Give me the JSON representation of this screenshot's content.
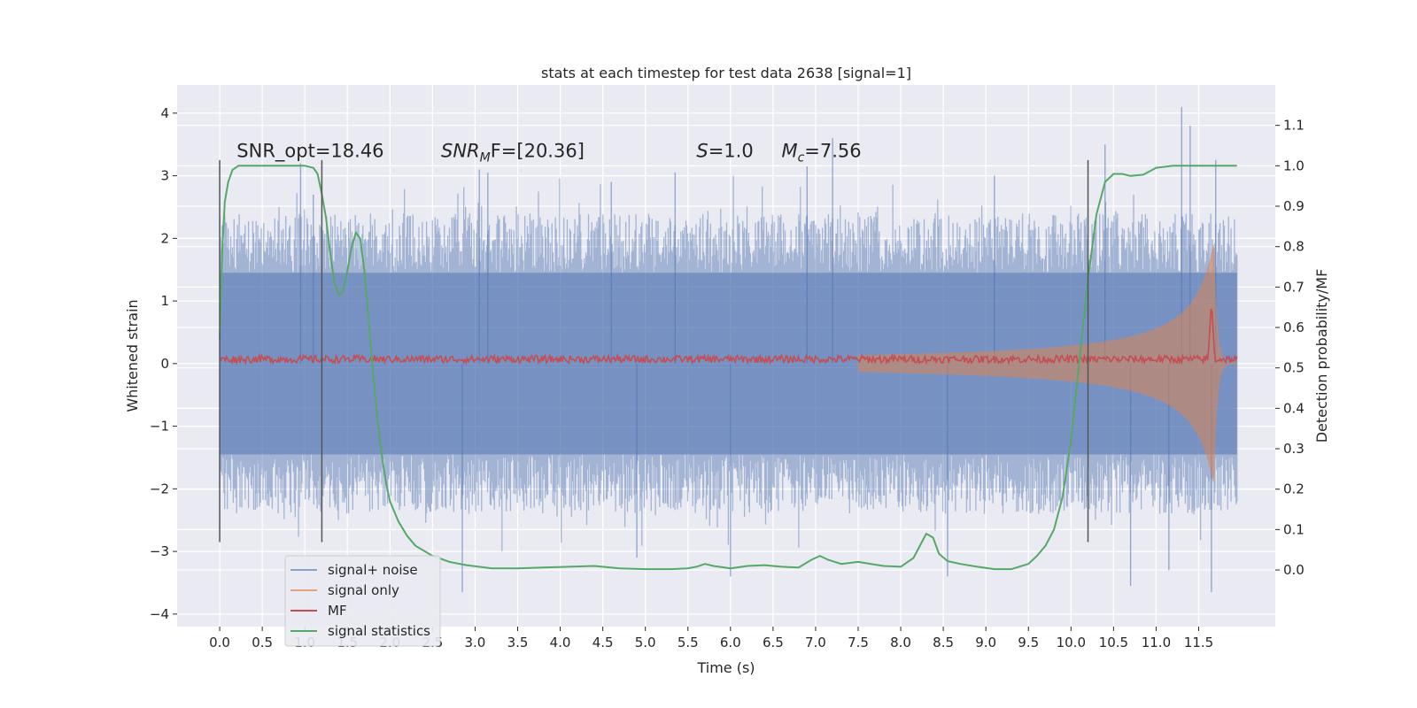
{
  "chart_data": {
    "type": "line",
    "title": "stats at each timestep for test data 2638 [signal=1]",
    "xlabel": "Time (s)",
    "ylabel": "Whitened strain",
    "ylabel_right": "Detection probability/MF",
    "xlim": [
      -0.5,
      12.4
    ],
    "ylim": [
      -4.2,
      4.45
    ],
    "ylim_right": [
      -0.14,
      1.2
    ],
    "xticks": [
      0.0,
      0.5,
      1.0,
      1.5,
      2.0,
      2.5,
      3.0,
      3.5,
      4.0,
      4.5,
      5.0,
      5.5,
      6.0,
      6.5,
      7.0,
      7.5,
      8.0,
      8.5,
      9.0,
      9.5,
      10.0,
      10.5,
      11.0,
      11.5
    ],
    "xtick_labels": [
      "0.0",
      "0.5",
      "1.0",
      "1.5",
      "2.0",
      "2.5",
      "3.0",
      "3.5",
      "4.0",
      "4.5",
      "5.0",
      "5.5",
      "6.0",
      "6.5",
      "7.0",
      "7.5",
      "8.0",
      "8.5",
      "9.0",
      "9.5",
      "10.0",
      "10.5",
      "11.0",
      "11.5"
    ],
    "yticks": [
      -4,
      -3,
      -2,
      -1,
      0,
      1,
      2,
      3,
      4
    ],
    "ytick_labels": [
      "−4",
      "−3",
      "−2",
      "−1",
      "0",
      "1",
      "2",
      "3",
      "4"
    ],
    "yticks_right": [
      0.0,
      0.1,
      0.2,
      0.3,
      0.4,
      0.5,
      0.6,
      0.7,
      0.8,
      0.9,
      1.0,
      1.1
    ],
    "ytick_labels_right": [
      "0.0",
      "0.1",
      "0.2",
      "0.3",
      "0.4",
      "0.5",
      "0.6",
      "0.7",
      "0.8",
      "0.9",
      "1.0",
      "1.1"
    ],
    "grid": true,
    "legend_position": "lower-left",
    "annotations": [
      {
        "text": "SNR_opt=18.46",
        "x": 0.2,
        "y": 3.3
      },
      {
        "base": "SNR",
        "sub": "M",
        "rest": "F=[20.36]",
        "x": 2.6,
        "y": 3.3
      },
      {
        "base": "S",
        "sub": "",
        "rest": "=1.0",
        "x": 5.6,
        "y": 3.3
      },
      {
        "base": "M",
        "sub": "c",
        "rest": "=7.56",
        "x": 6.6,
        "y": 3.3
      }
    ],
    "vertical_lines": [
      {
        "x": 0.0,
        "ymin": -2.85,
        "ymax": 3.25
      },
      {
        "x": 1.2,
        "ymin": -2.85,
        "ymax": 3.25
      },
      {
        "x": 10.2,
        "ymin": -2.85,
        "ymax": 3.25
      }
    ],
    "series": [
      {
        "name": "signal+ noise",
        "color": "#4c72b0",
        "axis": "left",
        "kind": "noise-band",
        "x_range": [
          0.0,
          11.95
        ],
        "core_amplitude": 1.45,
        "peak_amplitude": 2.4,
        "spikes": [
          {
            "x": 0.95,
            "y": 3.2
          },
          {
            "x": 1.1,
            "y": 2.7
          },
          {
            "x": 2.85,
            "y": -3.65
          },
          {
            "x": 3.05,
            "y": 3.1
          },
          {
            "x": 3.15,
            "y": 3.05
          },
          {
            "x": 4.6,
            "y": 2.9
          },
          {
            "x": 4.9,
            "y": -3.1
          },
          {
            "x": 5.35,
            "y": 3.05
          },
          {
            "x": 6.0,
            "y": -3.4
          },
          {
            "x": 6.9,
            "y": 3.15
          },
          {
            "x": 7.2,
            "y": 3.6
          },
          {
            "x": 8.55,
            "y": -3.4
          },
          {
            "x": 9.1,
            "y": 3.0
          },
          {
            "x": 10.4,
            "y": 3.5
          },
          {
            "x": 10.7,
            "y": -3.55
          },
          {
            "x": 11.15,
            "y": -3.3
          },
          {
            "x": 11.3,
            "y": 4.1
          },
          {
            "x": 11.4,
            "y": 3.8
          },
          {
            "x": 11.65,
            "y": -3.65
          },
          {
            "x": 11.7,
            "y": 3.25
          }
        ]
      },
      {
        "name": "signal only",
        "color": "#dd8452",
        "axis": "left",
        "kind": "chirp",
        "t_start": 7.5,
        "t_merge": 11.68,
        "t_end": 11.95,
        "peak_amplitude": 2.0
      },
      {
        "name": "MF",
        "color": "#c44e52",
        "axis": "left",
        "kind": "mf",
        "base": 0.07,
        "jitter": 0.06,
        "peak": {
          "x": 11.65,
          "y": 1.0
        }
      },
      {
        "name": "signal statistics",
        "color": "#55a868",
        "axis": "right",
        "kind": "line",
        "x": [
          0.0,
          0.03,
          0.06,
          0.1,
          0.15,
          0.22,
          0.3,
          0.5,
          0.8,
          1.0,
          1.1,
          1.15,
          1.2,
          1.25,
          1.3,
          1.35,
          1.4,
          1.45,
          1.5,
          1.55,
          1.6,
          1.65,
          1.7,
          1.75,
          1.8,
          1.85,
          1.9,
          1.95,
          2.0,
          2.1,
          2.2,
          2.3,
          2.5,
          2.7,
          2.9,
          3.2,
          3.5,
          3.8,
          4.1,
          4.4,
          4.7,
          5.0,
          5.3,
          5.5,
          5.6,
          5.7,
          5.8,
          6.0,
          6.2,
          6.4,
          6.6,
          6.8,
          6.95,
          7.05,
          7.15,
          7.3,
          7.5,
          7.65,
          7.8,
          8.0,
          8.15,
          8.25,
          8.3,
          8.38,
          8.45,
          8.55,
          8.7,
          8.9,
          9.1,
          9.3,
          9.5,
          9.6,
          9.7,
          9.8,
          9.9,
          10.0,
          10.1,
          10.2,
          10.3,
          10.4,
          10.5,
          10.6,
          10.7,
          10.85,
          11.0,
          11.2,
          11.5,
          11.7,
          11.95
        ],
        "y": [
          0.57,
          0.79,
          0.91,
          0.96,
          0.99,
          1.0,
          1.0,
          1.0,
          1.0,
          1.0,
          0.995,
          0.98,
          0.93,
          0.87,
          0.78,
          0.71,
          0.68,
          0.69,
          0.74,
          0.8,
          0.835,
          0.82,
          0.74,
          0.62,
          0.49,
          0.38,
          0.29,
          0.22,
          0.17,
          0.12,
          0.085,
          0.06,
          0.035,
          0.02,
          0.012,
          0.004,
          0.004,
          0.006,
          0.008,
          0.01,
          0.004,
          0.002,
          0.002,
          0.004,
          0.008,
          0.015,
          0.01,
          0.004,
          0.01,
          0.012,
          0.008,
          0.006,
          0.025,
          0.035,
          0.025,
          0.015,
          0.02,
          0.015,
          0.01,
          0.008,
          0.03,
          0.07,
          0.09,
          0.08,
          0.04,
          0.022,
          0.015,
          0.008,
          0.002,
          0.002,
          0.015,
          0.035,
          0.06,
          0.1,
          0.18,
          0.32,
          0.52,
          0.72,
          0.88,
          0.96,
          0.98,
          0.98,
          0.975,
          0.978,
          0.995,
          1.0,
          1.0,
          1.0,
          1.0
        ]
      }
    ]
  }
}
